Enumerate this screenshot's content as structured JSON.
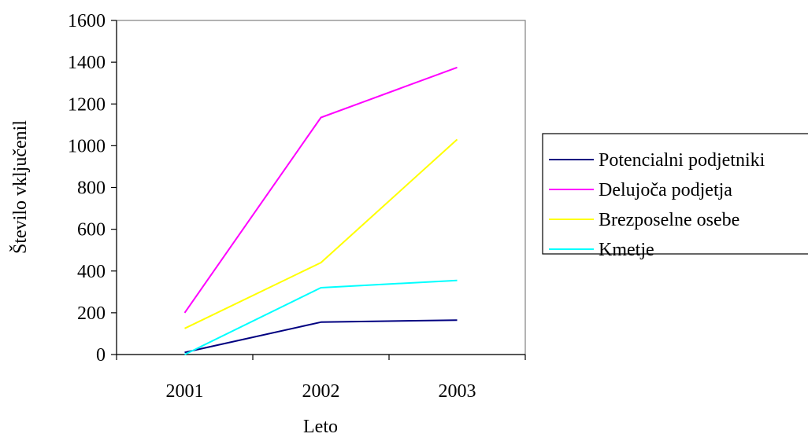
{
  "chart_data": {
    "type": "line",
    "title": "",
    "xlabel": "Leto",
    "ylabel": "Število vključenil",
    "categories": [
      "2001",
      "2002",
      "2003"
    ],
    "ylim": [
      0,
      1600
    ],
    "yticks": [
      0,
      200,
      400,
      600,
      800,
      1000,
      1200,
      1400,
      1600
    ],
    "grid": false,
    "legend_position": "right",
    "series": [
      {
        "name": "Potencialni podjetniki",
        "color": "#000080",
        "values": [
          10,
          155,
          165
        ]
      },
      {
        "name": "Delujoča podjetja",
        "color": "#ff00ff",
        "values": [
          200,
          1135,
          1375
        ]
      },
      {
        "name": "Brezposelne osebe",
        "color": "#ffff00",
        "values": [
          125,
          440,
          1030
        ]
      },
      {
        "name": "Kmetje",
        "color": "#00ffff",
        "values": [
          0,
          320,
          355
        ]
      }
    ]
  }
}
